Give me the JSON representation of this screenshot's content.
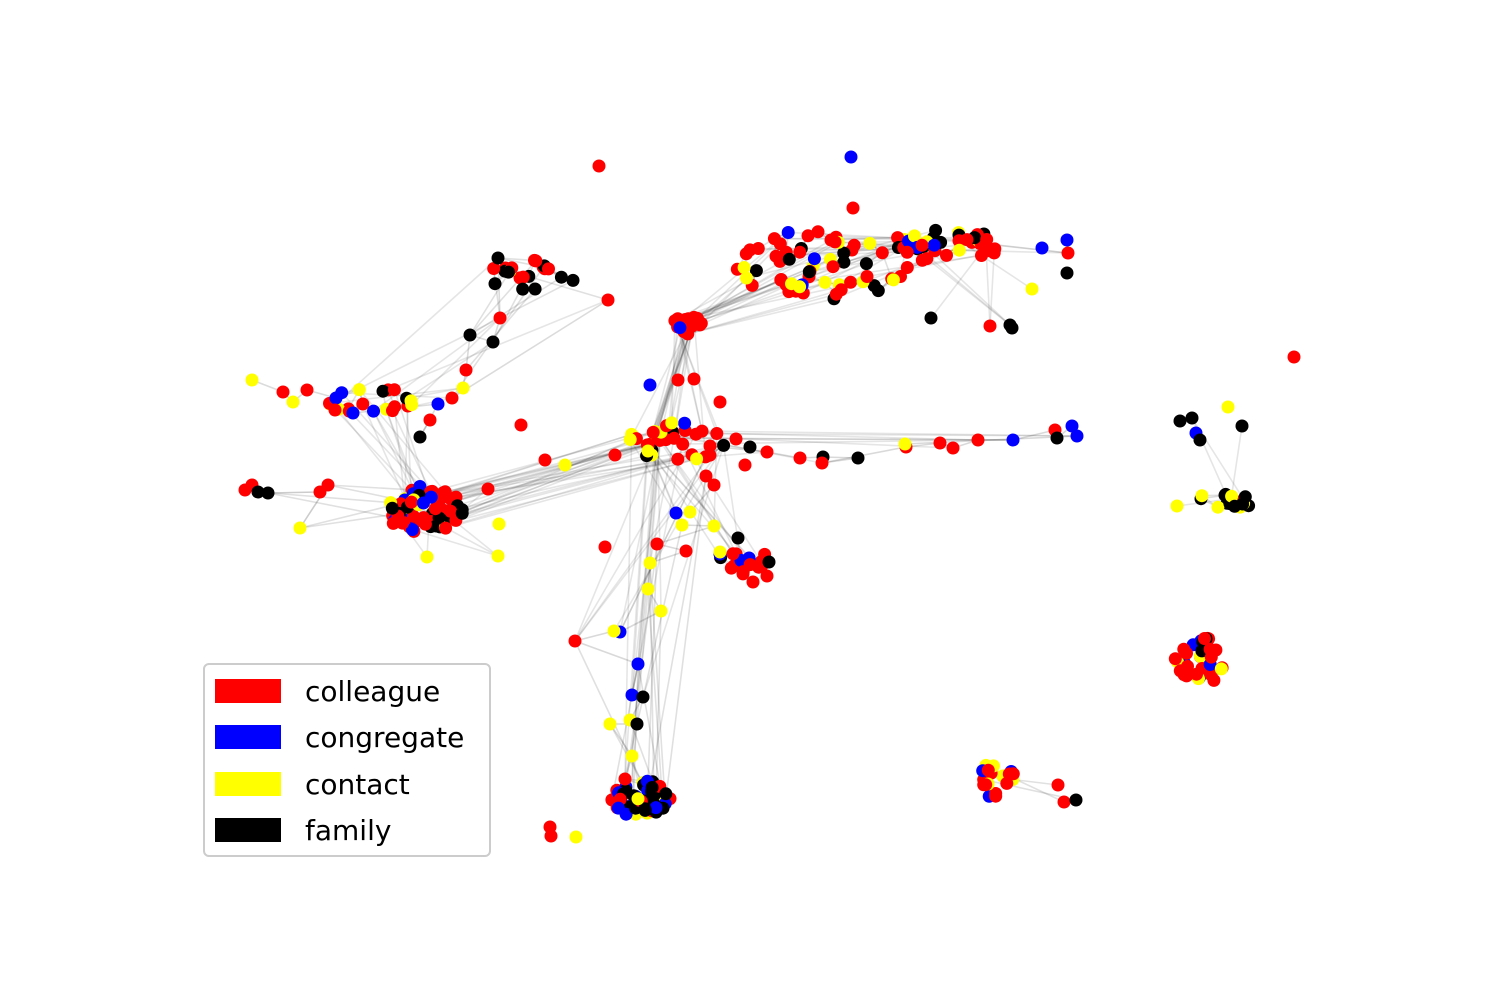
{
  "colors": {
    "colleague": "#ff0000",
    "congregate": "#0000ff",
    "contact": "#ffff00",
    "family": "#000000",
    "edge": "#000000"
  },
  "legend": {
    "items": [
      {
        "key": "colleague",
        "label": "colleague",
        "color": "#ff0000"
      },
      {
        "key": "congregate",
        "label": "congregate",
        "color": "#0000ff"
      },
      {
        "key": "contact",
        "label": "contact",
        "color": "#ffff00"
      },
      {
        "key": "family",
        "label": "family",
        "color": "#000000"
      }
    ]
  }
}
